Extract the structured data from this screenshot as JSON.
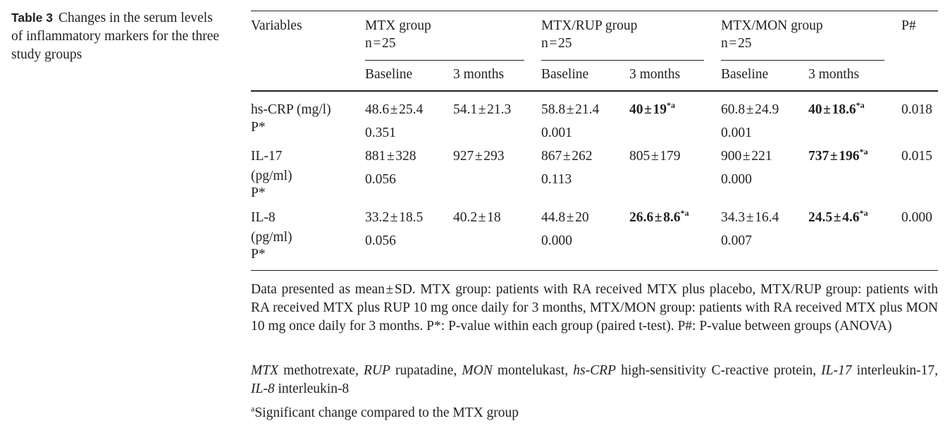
{
  "caption": {
    "label": "Table 3",
    "text": "Changes in the serum levels of inflammatory markers for the three study groups"
  },
  "header": {
    "variables": "Variables",
    "groups": [
      {
        "name": "MTX group",
        "n": "n = 25"
      },
      {
        "name": "MTX/RUP group",
        "n": "n = 25"
      },
      {
        "name": "MTX/MON group",
        "n": "n = 25"
      }
    ],
    "p_between": "P#",
    "baseline": "Baseline",
    "months3": "3 months"
  },
  "rows": [
    {
      "variable_lines": [
        "hs-CRP (mg/l)"
      ],
      "p_label": "P*",
      "mtx_base": "48.6 ± 25.4",
      "mtx_3m": "54.1 ± 21.3",
      "rup_base": "58.8 ± 21.4",
      "rup_3m": "40 ± 19",
      "mon_base": "60.8 ± 24.9",
      "mon_3m": "40 ± 18.6",
      "p_between": "0.018",
      "mtx_p": "0.351",
      "rup_p": "0.001",
      "mon_p": "0.001",
      "sup": "*a"
    },
    {
      "variable_lines": [
        "IL-17",
        "(pg/ml)"
      ],
      "p_label": "P*",
      "mtx_base": "881 ± 328",
      "mtx_3m": "927 ± 293",
      "rup_base": "867 ± 262",
      "rup_3m": "805 ± 179",
      "mon_base": "900 ± 221",
      "mon_3m": "737 ± 196",
      "p_between": "0.015",
      "mtx_p": "0.056",
      "rup_p": "0.113",
      "mon_p": "0.000",
      "sup": "*a"
    },
    {
      "variable_lines": [
        "IL-8",
        "(pg/ml)"
      ],
      "p_label": "P*",
      "mtx_base": "33.2 ± 18.5",
      "mtx_3m": "40.2 ± 18",
      "rup_base": "44.8 ± 20",
      "rup_3m": "26.6 ± 8.6",
      "mon_base": "34.3 ± 16.4",
      "mon_3m": "24.5 ± 4.6",
      "p_between": "0.000",
      "mtx_p": "0.056",
      "rup_p": "0.000",
      "mon_p": "0.007",
      "sup": "*a"
    }
  ],
  "notes": {
    "data_presented": "Data presented as mean ± SD. MTX group: patients with RA received MTX plus placebo, MTX/RUP group: patients with RA received MTX plus RUP 10 mg once daily for 3 months, MTX/MON group: patients with RA received MTX plus MON 10 mg once daily for 3 months. P*: P-value within each group (paired t-test). P#: P-value between groups (ANOVA)",
    "abbreviations": [
      {
        "abbr": "MTX",
        "def": "methotrexate, "
      },
      {
        "abbr": "RUP",
        "def": "rupatadine, "
      },
      {
        "abbr": "MON",
        "def": "montelukast, "
      },
      {
        "abbr": "hs-CRP",
        "def": "high-sensitivity C-reactive protein, "
      },
      {
        "abbr": "IL-17",
        "def": "interleukin-17, "
      },
      {
        "abbr": "IL-8",
        "def": "interleukin-8"
      }
    ],
    "footnote_mark": "a",
    "footnote": "Significant change compared to the MTX group"
  }
}
